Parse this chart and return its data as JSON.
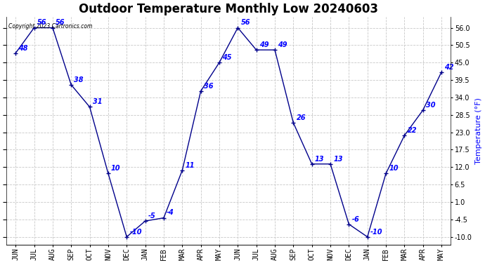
{
  "title": "Outdoor Temperature Monthly Low 20240603",
  "copyright": "Copyright 2023 Cartronics.com",
  "ylabel": "Temperature (°F)",
  "months": [
    "JUN",
    "JUL",
    "AUG",
    "SEP",
    "OCT",
    "NOV",
    "DEC",
    "JAN",
    "FEB",
    "MAR",
    "APR",
    "MAY",
    "JUN",
    "JUL",
    "AUG",
    "SEP",
    "OCT",
    "NOV",
    "DEC",
    "JAN",
    "FEB",
    "MAR",
    "APR",
    "MAY"
  ],
  "values": [
    48,
    56,
    56,
    38,
    31,
    10,
    -10,
    -5,
    -4,
    11,
    36,
    45,
    56,
    49,
    49,
    26,
    13,
    13,
    -6,
    -10,
    10,
    22,
    30,
    42
  ],
  "line_color": "#00008B",
  "marker_color": "#00008B",
  "text_color": "#0000FF",
  "grid_color": "#c8c8c8",
  "background_color": "#ffffff",
  "ylim": [
    -12.5,
    59.5
  ],
  "yticks": [
    -10.0,
    -4.5,
    1.0,
    6.5,
    12.0,
    17.5,
    23.0,
    28.5,
    34.0,
    39.5,
    45.0,
    50.5,
    56.0
  ],
  "title_fontsize": 12,
  "tick_fontsize": 7,
  "annot_fontsize": 7,
  "ylabel_fontsize": 8
}
